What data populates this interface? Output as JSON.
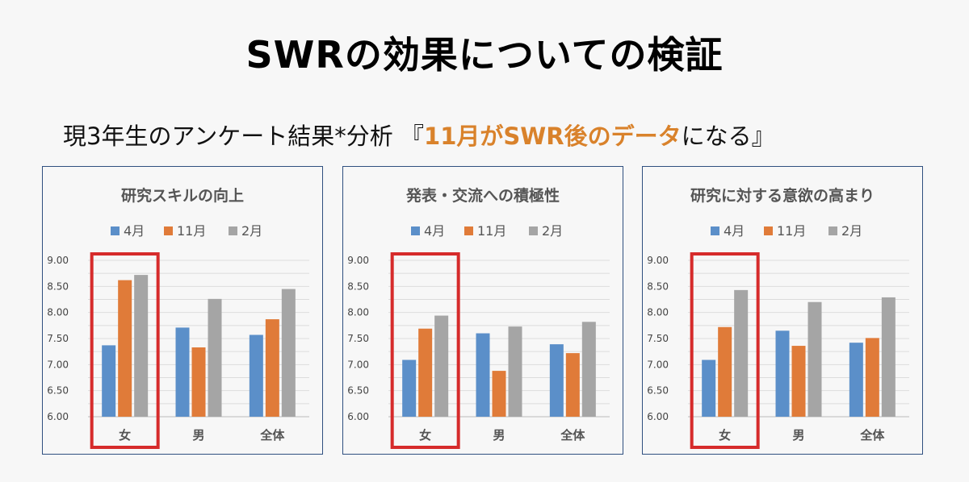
{
  "header": {
    "title": "SWRの効果についての検証",
    "subtitle_pre": "現3年生のアンケート結果*分析 『",
    "subtitle_highlight": "11月がSWR後のデータ",
    "subtitle_post": "になる』"
  },
  "colors": {
    "apr": "#5b8fc9",
    "nov": "#e07b39",
    "feb": "#a5a5a5",
    "highlight": "#d62b2b",
    "subtitle_highlight": "#d9822b"
  },
  "chart_data": [
    {
      "type": "bar",
      "title": "研究スキルの向上",
      "categories": [
        "女",
        "男",
        "全体"
      ],
      "series": [
        {
          "name": "4月",
          "values": [
            7.37,
            7.71,
            7.57
          ]
        },
        {
          "name": "11月",
          "values": [
            8.62,
            7.33,
            7.87
          ]
        },
        {
          "name": "2月",
          "values": [
            8.72,
            8.26,
            8.45
          ]
        }
      ],
      "ylim": [
        6.0,
        9.0
      ],
      "yticks": [
        "6.00",
        "6.50",
        "7.00",
        "7.50",
        "8.00",
        "8.50",
        "9.00"
      ],
      "legend": "top",
      "grid": true,
      "highlight_category": "女"
    },
    {
      "type": "bar",
      "title": "発表・交流への積極性",
      "categories": [
        "女",
        "男",
        "全体"
      ],
      "series": [
        {
          "name": "4月",
          "values": [
            7.09,
            7.6,
            7.39
          ]
        },
        {
          "name": "11月",
          "values": [
            7.69,
            6.88,
            7.22
          ]
        },
        {
          "name": "2月",
          "values": [
            7.94,
            7.73,
            7.82
          ]
        }
      ],
      "ylim": [
        6.0,
        9.0
      ],
      "yticks": [
        "6.00",
        "6.50",
        "7.00",
        "7.50",
        "8.00",
        "8.50",
        "9.00"
      ],
      "legend": "top",
      "grid": true,
      "highlight_category": "女"
    },
    {
      "type": "bar",
      "title": "研究に対する意欲の高まり",
      "categories": [
        "女",
        "男",
        "全体"
      ],
      "series": [
        {
          "name": "4月",
          "values": [
            7.09,
            7.65,
            7.42
          ]
        },
        {
          "name": "11月",
          "values": [
            7.72,
            7.36,
            7.51
          ]
        },
        {
          "name": "2月",
          "values": [
            8.43,
            8.2,
            8.29
          ]
        }
      ],
      "ylim": [
        6.0,
        9.0
      ],
      "yticks": [
        "6.00",
        "6.50",
        "7.00",
        "7.50",
        "8.00",
        "8.50",
        "9.00"
      ],
      "legend": "top",
      "grid": true,
      "highlight_category": "女"
    }
  ]
}
